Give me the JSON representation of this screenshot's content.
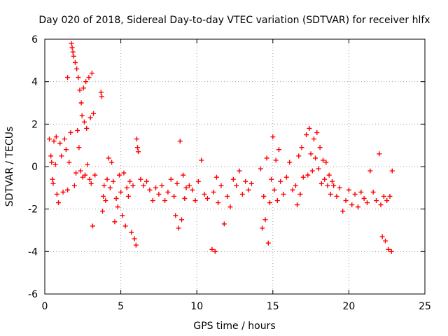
{
  "chart_data": {
    "type": "scatter",
    "title": "Day 020 of 2018, Sidereal Day-to-day VTEC variation (SDTVAR) for receiver hlfx",
    "xlabel": "GPS time / hours",
    "ylabel": "SDTVAR / TECUs",
    "xlim": [
      0,
      25
    ],
    "ylim": [
      -6,
      6
    ],
    "xticks": [
      0,
      5,
      10,
      15,
      20,
      25
    ],
    "yticks": [
      -6,
      -4,
      -2,
      0,
      2,
      4,
      6
    ],
    "xtick_labels": [
      "0",
      "5",
      "10",
      "15",
      "20",
      "25"
    ],
    "ytick_labels": [
      "-6",
      "-4",
      "-2",
      "0",
      "2",
      "4",
      "6"
    ],
    "grid": true,
    "marker": "plus",
    "color": "#ff0000",
    "series": [
      {
        "name": "SDTVAR",
        "points": [
          [
            0.3,
            1.3
          ],
          [
            0.4,
            0.5
          ],
          [
            0.45,
            0.2
          ],
          [
            0.5,
            -0.6
          ],
          [
            0.55,
            -0.8
          ],
          [
            0.6,
            1.2
          ],
          [
            0.7,
            0.1
          ],
          [
            0.75,
            1.4
          ],
          [
            0.8,
            -1.3
          ],
          [
            0.9,
            -1.7
          ],
          [
            1.0,
            1.1
          ],
          [
            1.1,
            0.5
          ],
          [
            1.2,
            -1.2
          ],
          [
            1.3,
            1.3
          ],
          [
            1.4,
            0.8
          ],
          [
            1.5,
            4.2
          ],
          [
            1.5,
            -1.1
          ],
          [
            1.6,
            0.2
          ],
          [
            1.7,
            1.6
          ],
          [
            1.75,
            5.8
          ],
          [
            1.8,
            5.6
          ],
          [
            1.85,
            5.4
          ],
          [
            1.9,
            5.2
          ],
          [
            1.95,
            -0.9
          ],
          [
            2.0,
            4.9
          ],
          [
            2.05,
            -0.3
          ],
          [
            2.1,
            4.6
          ],
          [
            2.15,
            1.7
          ],
          [
            2.2,
            4.2
          ],
          [
            2.25,
            0.9
          ],
          [
            2.3,
            3.6
          ],
          [
            2.35,
            -0.2
          ],
          [
            2.4,
            3.0
          ],
          [
            2.45,
            2.4
          ],
          [
            2.5,
            -0.5
          ],
          [
            2.55,
            3.7
          ],
          [
            2.6,
            2.1
          ],
          [
            2.65,
            -0.4
          ],
          [
            2.7,
            4.0
          ],
          [
            2.75,
            1.8
          ],
          [
            2.8,
            0.1
          ],
          [
            2.9,
            4.2
          ],
          [
            2.95,
            -0.6
          ],
          [
            3.0,
            2.3
          ],
          [
            3.05,
            -0.8
          ],
          [
            3.1,
            4.4
          ],
          [
            3.15,
            -2.8
          ],
          [
            3.2,
            2.5
          ],
          [
            3.3,
            -0.4
          ],
          [
            3.7,
            3.5
          ],
          [
            3.75,
            3.3
          ],
          [
            3.8,
            -2.1
          ],
          [
            3.85,
            -1.4
          ],
          [
            3.9,
            -0.9
          ],
          [
            4.0,
            -1.6
          ],
          [
            4.1,
            -0.6
          ],
          [
            4.2,
            0.4
          ],
          [
            4.3,
            -1.0
          ],
          [
            4.4,
            0.2
          ],
          [
            4.5,
            -0.7
          ],
          [
            4.6,
            -2.6
          ],
          [
            4.7,
            -1.5
          ],
          [
            4.8,
            -1.9
          ],
          [
            4.9,
            -0.4
          ],
          [
            5.0,
            -1.2
          ],
          [
            5.1,
            -2.3
          ],
          [
            5.2,
            -0.3
          ],
          [
            5.3,
            -2.8
          ],
          [
            5.4,
            -1.0
          ],
          [
            5.5,
            -1.4
          ],
          [
            5.6,
            -0.7
          ],
          [
            5.7,
            -3.1
          ],
          [
            5.8,
            -0.9
          ],
          [
            5.9,
            -3.4
          ],
          [
            6.0,
            -3.7
          ],
          [
            6.05,
            1.3
          ],
          [
            6.1,
            0.9
          ],
          [
            6.15,
            0.7
          ],
          [
            6.3,
            -0.6
          ],
          [
            6.5,
            -0.9
          ],
          [
            6.7,
            -0.7
          ],
          [
            6.9,
            -1.1
          ],
          [
            7.1,
            -1.6
          ],
          [
            7.3,
            -1.0
          ],
          [
            7.5,
            -1.3
          ],
          [
            7.7,
            -0.9
          ],
          [
            7.9,
            -1.6
          ],
          [
            8.1,
            -1.2
          ],
          [
            8.3,
            -0.6
          ],
          [
            8.5,
            -1.4
          ],
          [
            8.6,
            -2.3
          ],
          [
            8.7,
            -0.8
          ],
          [
            8.8,
            -2.9
          ],
          [
            8.9,
            1.2
          ],
          [
            9.0,
            -2.5
          ],
          [
            9.1,
            -0.4
          ],
          [
            9.2,
            -1.5
          ],
          [
            9.3,
            -1.0
          ],
          [
            9.5,
            -0.9
          ],
          [
            9.7,
            -1.1
          ],
          [
            9.9,
            -1.6
          ],
          [
            10.1,
            -0.7
          ],
          [
            10.3,
            0.3
          ],
          [
            10.5,
            -1.3
          ],
          [
            10.7,
            -1.5
          ],
          [
            11.0,
            -3.9
          ],
          [
            11.1,
            -1.2
          ],
          [
            11.2,
            -4.0
          ],
          [
            11.3,
            -0.5
          ],
          [
            11.4,
            -1.7
          ],
          [
            11.6,
            -0.9
          ],
          [
            11.8,
            -2.7
          ],
          [
            12.0,
            -1.4
          ],
          [
            12.2,
            -1.9
          ],
          [
            12.4,
            -0.6
          ],
          [
            12.6,
            -0.9
          ],
          [
            12.8,
            -0.2
          ],
          [
            13.0,
            -1.3
          ],
          [
            13.2,
            -0.7
          ],
          [
            13.4,
            -1.1
          ],
          [
            13.6,
            -0.8
          ],
          [
            14.2,
            -0.1
          ],
          [
            14.3,
            -2.9
          ],
          [
            14.4,
            -1.4
          ],
          [
            14.5,
            -2.5
          ],
          [
            14.6,
            0.4
          ],
          [
            14.7,
            -3.6
          ],
          [
            14.8,
            -1.7
          ],
          [
            14.9,
            -0.6
          ],
          [
            15.0,
            1.4
          ],
          [
            15.1,
            -1.1
          ],
          [
            15.2,
            0.3
          ],
          [
            15.3,
            -1.6
          ],
          [
            15.4,
            0.8
          ],
          [
            15.5,
            -0.7
          ],
          [
            15.7,
            -1.3
          ],
          [
            15.9,
            -0.5
          ],
          [
            16.1,
            0.2
          ],
          [
            16.3,
            -1.1
          ],
          [
            16.5,
            -0.9
          ],
          [
            16.6,
            -1.8
          ],
          [
            16.7,
            0.5
          ],
          [
            16.8,
            -1.3
          ],
          [
            16.9,
            0.9
          ],
          [
            17.0,
            -0.5
          ],
          [
            17.2,
            1.5
          ],
          [
            17.3,
            -0.4
          ],
          [
            17.4,
            1.8
          ],
          [
            17.5,
            0.6
          ],
          [
            17.6,
            -0.2
          ],
          [
            17.7,
            1.3
          ],
          [
            17.8,
            0.4
          ],
          [
            17.9,
            1.6
          ],
          [
            18.0,
            -0.1
          ],
          [
            18.1,
            0.9
          ],
          [
            18.2,
            -0.8
          ],
          [
            18.3,
            0.3
          ],
          [
            18.4,
            -0.6
          ],
          [
            18.5,
            0.2
          ],
          [
            18.6,
            -0.9
          ],
          [
            18.7,
            -0.4
          ],
          [
            18.8,
            -1.3
          ],
          [
            18.9,
            -0.7
          ],
          [
            19.0,
            -0.9
          ],
          [
            19.2,
            -1.4
          ],
          [
            19.4,
            -1.0
          ],
          [
            19.6,
            -2.1
          ],
          [
            19.8,
            -1.6
          ],
          [
            20.0,
            -1.1
          ],
          [
            20.2,
            -1.8
          ],
          [
            20.4,
            -1.3
          ],
          [
            20.6,
            -1.9
          ],
          [
            20.8,
            -1.2
          ],
          [
            21.0,
            -1.5
          ],
          [
            21.2,
            -1.7
          ],
          [
            21.4,
            -0.2
          ],
          [
            21.6,
            -1.2
          ],
          [
            21.8,
            -1.6
          ],
          [
            22.0,
            0.6
          ],
          [
            22.1,
            -1.8
          ],
          [
            22.2,
            -3.3
          ],
          [
            22.3,
            -1.4
          ],
          [
            22.4,
            -3.5
          ],
          [
            22.5,
            -1.6
          ],
          [
            22.6,
            -3.9
          ],
          [
            22.7,
            -1.4
          ],
          [
            22.8,
            -4.0
          ],
          [
            22.85,
            -0.2
          ]
        ]
      }
    ]
  }
}
